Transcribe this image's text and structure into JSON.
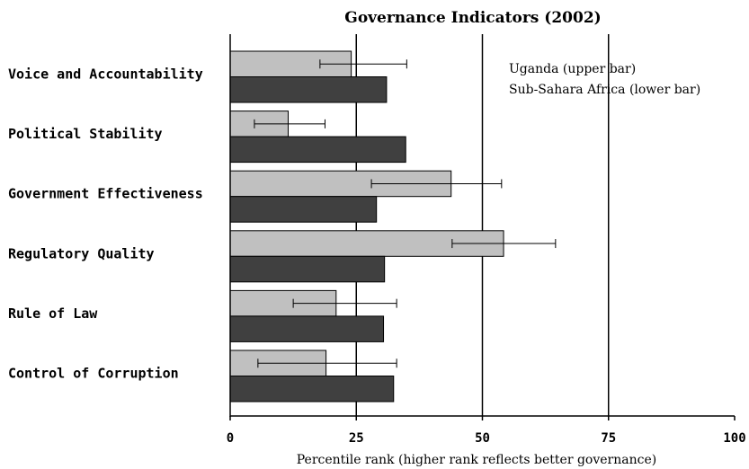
{
  "chart_data": {
    "type": "bar",
    "orientation": "horizontal",
    "title": "Governance Indicators (2002)",
    "xlabel": "Percentile rank (higher rank reflects better governance)",
    "ylabel": "",
    "xlim": [
      0,
      100
    ],
    "xticks": [
      0,
      25,
      50,
      75,
      100
    ],
    "grid": "vertical lines at 25, 50, 75",
    "legend_position": "top-right",
    "legend": [
      "Uganda (upper bar)",
      "Sub-Sahara Africa (lower bar)"
    ],
    "categories": [
      "Voice and Accountability",
      "Political Stability",
      "Government Effectiveness",
      "Regulatory Quality",
      "Rule of Law",
      "Control of Corruption"
    ],
    "series": [
      {
        "name": "Uganda",
        "color": "#c0c0c0",
        "values": [
          24,
          11.5,
          43.8,
          54.2,
          21,
          19
        ],
        "error_low": [
          17.8,
          4.8,
          28,
          44,
          12.5,
          5.5
        ],
        "error_high": [
          35,
          18.8,
          53.8,
          64.5,
          33,
          33
        ]
      },
      {
        "name": "Sub-Sahara Africa",
        "color": "#404040",
        "values": [
          31,
          34.8,
          29,
          30.6,
          30.4,
          32.4
        ]
      }
    ]
  }
}
